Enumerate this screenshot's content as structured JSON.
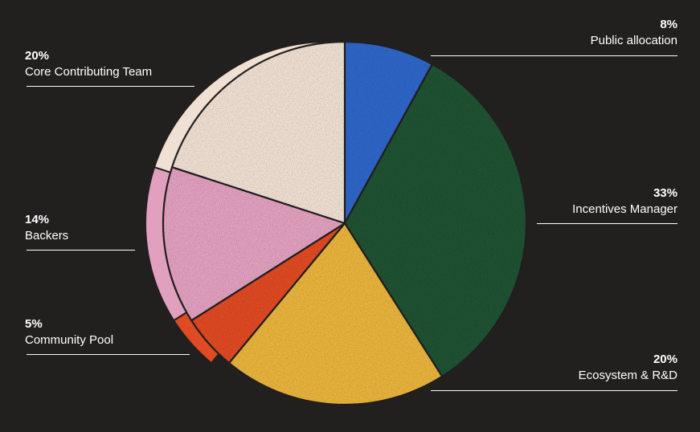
{
  "chart_data": {
    "type": "pie",
    "title": "",
    "slices": [
      {
        "label": "Public allocation",
        "value": 8,
        "value_label": "8%",
        "color": "#2e66c8"
      },
      {
        "label": "Incentives Manager",
        "value": 33,
        "value_label": "33%",
        "color": "#1f5233"
      },
      {
        "label": "Ecosystem & R&D",
        "value": 20,
        "value_label": "20%",
        "color": "#e8b43c"
      },
      {
        "label": "Community Pool",
        "value": 5,
        "value_label": "5%",
        "color": "#e04a22"
      },
      {
        "label": "Backers",
        "value": 14,
        "value_label": "14%",
        "color": "#e2a0bf"
      },
      {
        "label": "Core Contributing Team",
        "value": 20,
        "value_label": "20%",
        "color": "#f0e0d3"
      }
    ],
    "start_angle_deg": 0,
    "direction": "clockwise",
    "legend": "none",
    "background": "#221f1f"
  }
}
